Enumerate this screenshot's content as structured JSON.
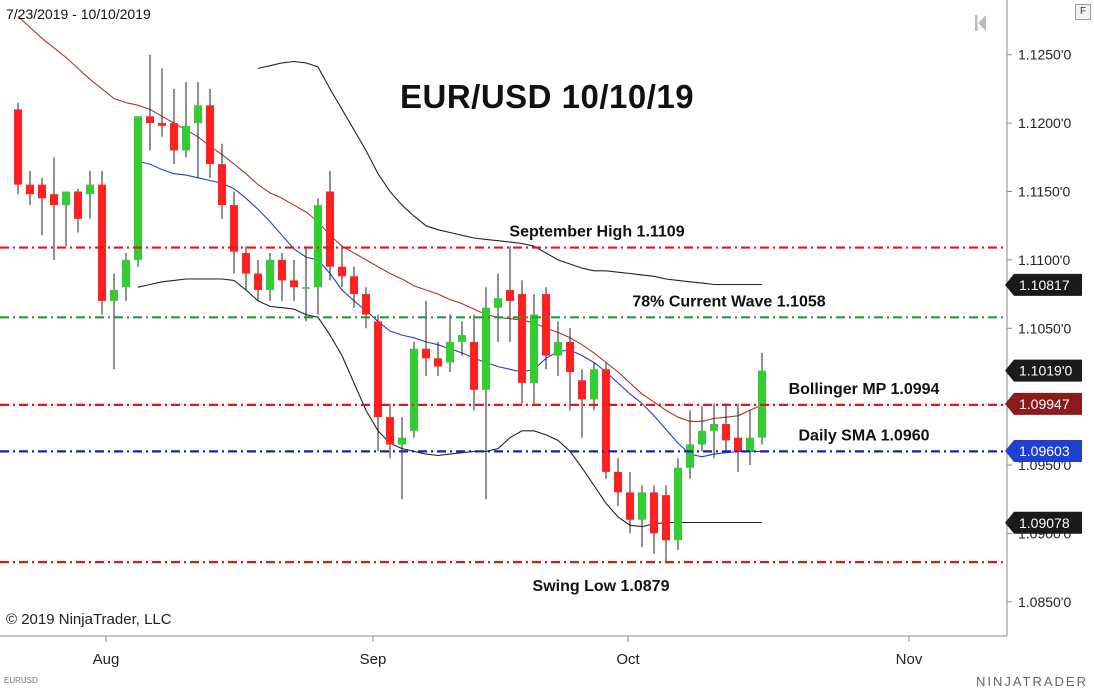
{
  "header": {
    "date_range": "7/23/2019 - 10/10/2019",
    "title": "EUR/USD 10/10/19"
  },
  "footer": {
    "copyright": "© 2019 NinjaTrader, LLC",
    "instrument": "EURUSD",
    "brand": "NINJATRADER"
  },
  "controls": {
    "f_button": "F"
  },
  "chart_data": {
    "type": "candlestick",
    "title": "EUR/USD 10/10/19",
    "colors": {
      "up": "#33cc33",
      "down": "#ff2020",
      "sma": "#1f3fd0",
      "bollinger_mid": "#b03030",
      "bollinger_band": "#222222"
    },
    "x_axis": {
      "labels": [
        "Aug",
        "Sep",
        "Oct",
        "Nov"
      ]
    },
    "y_axis": {
      "min": 1.0825,
      "max": 1.129,
      "tick_labels": [
        "1.1250'0",
        "1.1200'0",
        "1.1150'0",
        "1.1100'0",
        "1.1050'0",
        "1.0950'0",
        "1.0900'0",
        "1.0850'0"
      ]
    },
    "price_tags": [
      {
        "value": "1.10817",
        "price": 1.10817,
        "bg": "#1a1a1a"
      },
      {
        "value": "1.1019'0",
        "price": 1.1019,
        "bg": "#1a1a1a"
      },
      {
        "value": "1.09947",
        "price": 1.09947,
        "bg": "#8b1a1a"
      },
      {
        "value": "1.09603",
        "price": 1.09603,
        "bg": "#1f3fd0"
      },
      {
        "value": "1.09078",
        "price": 1.09078,
        "bg": "#1a1a1a"
      }
    ],
    "levels": [
      {
        "label": "September High 1.1109",
        "price": 1.1109,
        "color": "#e01818"
      },
      {
        "label": "78% Current Wave 1.1058",
        "price": 1.1058,
        "color": "#1e9c30"
      },
      {
        "label": "Bollinger MP 1.0994",
        "price": 1.0994,
        "color": "#e01818"
      },
      {
        "label": "Daily SMA 1.0960",
        "price": 1.096,
        "color": "#1520b0"
      },
      {
        "label": "Swing Low 1.0879",
        "price": 1.0879,
        "color": "#e01818"
      }
    ],
    "candles": [
      {
        "o": 1.121,
        "h": 1.1215,
        "l": 1.1148,
        "c": 1.1155
      },
      {
        "o": 1.1155,
        "h": 1.1165,
        "l": 1.114,
        "c": 1.1148
      },
      {
        "o": 1.1155,
        "h": 1.116,
        "l": 1.1118,
        "c": 1.1145
      },
      {
        "o": 1.1148,
        "h": 1.1175,
        "l": 1.11,
        "c": 1.114
      },
      {
        "o": 1.114,
        "h": 1.115,
        "l": 1.111,
        "c": 1.115
      },
      {
        "o": 1.115,
        "h": 1.1152,
        "l": 1.112,
        "c": 1.113
      },
      {
        "o": 1.1148,
        "h": 1.1165,
        "l": 1.113,
        "c": 1.1155
      },
      {
        "o": 1.1155,
        "h": 1.1165,
        "l": 1.106,
        "c": 1.107
      },
      {
        "o": 1.107,
        "h": 1.109,
        "l": 1.102,
        "c": 1.1078
      },
      {
        "o": 1.108,
        "h": 1.1105,
        "l": 1.107,
        "c": 1.11
      },
      {
        "o": 1.11,
        "h": 1.1205,
        "l": 1.1095,
        "c": 1.1205
      },
      {
        "o": 1.1205,
        "h": 1.125,
        "l": 1.118,
        "c": 1.12
      },
      {
        "o": 1.12,
        "h": 1.124,
        "l": 1.119,
        "c": 1.1198
      },
      {
        "o": 1.12,
        "h": 1.1225,
        "l": 1.117,
        "c": 1.118
      },
      {
        "o": 1.118,
        "h": 1.123,
        "l": 1.1175,
        "c": 1.1198
      },
      {
        "o": 1.12,
        "h": 1.123,
        "l": 1.116,
        "c": 1.1213
      },
      {
        "o": 1.1213,
        "h": 1.1225,
        "l": 1.116,
        "c": 1.117
      },
      {
        "o": 1.117,
        "h": 1.1185,
        "l": 1.113,
        "c": 1.114
      },
      {
        "o": 1.114,
        "h": 1.115,
        "l": 1.109,
        "c": 1.1106
      },
      {
        "o": 1.1105,
        "h": 1.111,
        "l": 1.1078,
        "c": 1.109
      },
      {
        "o": 1.109,
        "h": 1.11,
        "l": 1.107,
        "c": 1.1078
      },
      {
        "o": 1.1078,
        "h": 1.1105,
        "l": 1.107,
        "c": 1.11
      },
      {
        "o": 1.11,
        "h": 1.1105,
        "l": 1.107,
        "c": 1.1085
      },
      {
        "o": 1.1085,
        "h": 1.11,
        "l": 1.107,
        "c": 1.108
      },
      {
        "o": 1.108,
        "h": 1.111,
        "l": 1.1055,
        "c": 1.108
      },
      {
        "o": 1.108,
        "h": 1.1145,
        "l": 1.106,
        "c": 1.114
      },
      {
        "o": 1.115,
        "h": 1.1165,
        "l": 1.1085,
        "c": 1.1095
      },
      {
        "o": 1.1095,
        "h": 1.111,
        "l": 1.108,
        "c": 1.1088
      },
      {
        "o": 1.1088,
        "h": 1.1095,
        "l": 1.1065,
        "c": 1.1075
      },
      {
        "o": 1.1075,
        "h": 1.108,
        "l": 1.105,
        "c": 1.106
      },
      {
        "o": 1.1055,
        "h": 1.106,
        "l": 1.096,
        "c": 1.0985
      },
      {
        "o": 1.0985,
        "h": 1.0995,
        "l": 1.0955,
        "c": 1.0965
      },
      {
        "o": 1.0965,
        "h": 1.0985,
        "l": 1.0925,
        "c": 1.097
      },
      {
        "o": 1.0975,
        "h": 1.104,
        "l": 1.097,
        "c": 1.1035
      },
      {
        "o": 1.1035,
        "h": 1.107,
        "l": 1.1015,
        "c": 1.1028
      },
      {
        "o": 1.1028,
        "h": 1.104,
        "l": 1.1015,
        "c": 1.1022
      },
      {
        "o": 1.1025,
        "h": 1.106,
        "l": 1.1018,
        "c": 1.104
      },
      {
        "o": 1.104,
        "h": 1.1055,
        "l": 1.103,
        "c": 1.1045
      },
      {
        "o": 1.104,
        "h": 1.106,
        "l": 1.099,
        "c": 1.1005
      },
      {
        "o": 1.1005,
        "h": 1.108,
        "l": 1.0925,
        "c": 1.1065
      },
      {
        "o": 1.1065,
        "h": 1.109,
        "l": 1.104,
        "c": 1.1072
      },
      {
        "o": 1.1078,
        "h": 1.111,
        "l": 1.104,
        "c": 1.107
      },
      {
        "o": 1.1075,
        "h": 1.1085,
        "l": 1.0995,
        "c": 1.101
      },
      {
        "o": 1.101,
        "h": 1.1075,
        "l": 1.0995,
        "c": 1.106
      },
      {
        "o": 1.1075,
        "h": 1.108,
        "l": 1.102,
        "c": 1.103
      },
      {
        "o": 1.103,
        "h": 1.1055,
        "l": 1.1015,
        "c": 1.104
      },
      {
        "o": 1.104,
        "h": 1.105,
        "l": 1.099,
        "c": 1.1018
      },
      {
        "o": 1.1012,
        "h": 1.102,
        "l": 1.097,
        "c": 1.0998
      },
      {
        "o": 1.0998,
        "h": 1.1025,
        "l": 1.099,
        "c": 1.102
      },
      {
        "o": 1.102,
        "h": 1.1025,
        "l": 1.094,
        "c": 1.0945
      },
      {
        "o": 1.0945,
        "h": 1.0955,
        "l": 1.092,
        "c": 1.093
      },
      {
        "o": 1.093,
        "h": 1.0945,
        "l": 1.09,
        "c": 1.091
      },
      {
        "o": 1.091,
        "h": 1.0935,
        "l": 1.089,
        "c": 1.093
      },
      {
        "o": 1.093,
        "h": 1.0935,
        "l": 1.0885,
        "c": 1.09
      },
      {
        "o": 1.0928,
        "h": 1.0935,
        "l": 1.0879,
        "c": 1.0895
      },
      {
        "o": 1.0895,
        "h": 1.0955,
        "l": 1.0888,
        "c": 1.0948
      },
      {
        "o": 1.0948,
        "h": 1.099,
        "l": 1.094,
        "c": 1.0965
      },
      {
        "o": 1.0965,
        "h": 1.0993,
        "l": 1.096,
        "c": 1.0975
      },
      {
        "o": 1.0975,
        "h": 1.0995,
        "l": 1.0955,
        "c": 1.098
      },
      {
        "o": 1.098,
        "h": 1.0995,
        "l": 1.096,
        "c": 1.0968
      },
      {
        "o": 1.097,
        "h": 1.0995,
        "l": 1.0945,
        "c": 1.096
      },
      {
        "o": 1.096,
        "h": 1.099,
        "l": 1.095,
        "c": 1.097
      },
      {
        "o": 1.097,
        "h": 1.1032,
        "l": 1.0965,
        "c": 1.1019
      }
    ],
    "sma": [
      null,
      null,
      null,
      null,
      null,
      null,
      null,
      null,
      null,
      null,
      1.1172,
      1.117,
      1.1166,
      1.1163,
      1.1162,
      1.116,
      1.1158,
      1.1156,
      1.1152,
      1.1145,
      1.1137,
      1.1128,
      1.1118,
      1.1108,
      1.1102,
      1.11,
      1.109,
      1.1078,
      1.107,
      1.1063,
      1.1055,
      1.1048,
      1.1045,
      1.1043,
      1.104,
      1.1038,
      1.1035,
      1.1032,
      1.1028,
      1.1025,
      1.1022,
      1.102,
      1.1018,
      1.102,
      1.1028,
      1.1033,
      1.1034,
      1.103,
      1.1025,
      1.1018,
      1.101,
      1.1002,
      1.0995,
      1.0986,
      1.0976,
      1.0966,
      1.0958,
      1.0956,
      1.0958,
      1.0959,
      1.096,
      1.096,
      1.096
    ],
    "bollinger_mid": [
      1.1278,
      1.127,
      1.1262,
      1.1255,
      1.1248,
      1.124,
      1.1232,
      1.1225,
      1.1218,
      1.1215,
      1.1213,
      1.121,
      1.1205,
      1.12,
      1.1195,
      1.119,
      1.1183,
      1.1177,
      1.117,
      1.1163,
      1.1155,
      1.1149,
      1.1145,
      1.114,
      1.1135,
      1.1128,
      1.1118,
      1.111,
      1.1105,
      1.11,
      1.1095,
      1.109,
      1.1086,
      1.1081,
      1.1078,
      1.1075,
      1.1071,
      1.1068,
      1.1064,
      1.106,
      1.1058,
      1.1057,
      1.1056,
      1.1054,
      1.105,
      1.1047,
      1.1043,
      1.1038,
      1.1032,
      1.1025,
      1.1018,
      1.101,
      1.1002,
      1.0996,
      1.099,
      1.0985,
      1.0982,
      1.0982,
      1.0984,
      1.0985,
      1.0986,
      1.099,
      1.0994
    ],
    "bollinger_upper": [
      null,
      null,
      null,
      null,
      null,
      null,
      null,
      null,
      null,
      null,
      null,
      null,
      null,
      null,
      null,
      null,
      null,
      null,
      null,
      null,
      1.124,
      1.1242,
      1.1244,
      1.1245,
      1.1244,
      1.1241,
      1.1225,
      1.121,
      1.1195,
      1.118,
      1.1163,
      1.115,
      1.114,
      1.1132,
      1.1125,
      1.1122,
      1.112,
      1.1118,
      1.1116,
      1.1115,
      1.1114,
      1.1113,
      1.1112,
      1.111,
      1.1105,
      1.11,
      1.1097,
      1.1094,
      1.1092,
      1.1092,
      1.1091,
      1.109,
      1.1089,
      1.1088,
      1.1086,
      1.1085,
      1.1084,
      1.1083,
      1.1082,
      1.1082,
      1.1082,
      1.1082,
      1.1082
    ],
    "bollinger_lower": [
      null,
      null,
      null,
      null,
      null,
      null,
      null,
      null,
      null,
      null,
      1.108,
      1.1082,
      1.1084,
      1.1085,
      1.1086,
      1.1086,
      1.1086,
      1.1086,
      1.1085,
      1.1078,
      1.107,
      1.1066,
      1.1065,
      1.1064,
      1.106,
      1.1058,
      1.1045,
      1.103,
      1.101,
      1.099,
      1.0975,
      1.0966,
      1.0962,
      1.096,
      1.0958,
      1.0957,
      1.0958,
      1.0959,
      1.096,
      1.096,
      1.0962,
      1.097,
      1.0975,
      1.0975,
      1.0972,
      1.0968,
      1.096,
      1.0948,
      1.0935,
      1.0922,
      1.0912,
      1.0906,
      1.0905,
      1.0907,
      1.0908,
      1.0908,
      1.0908,
      1.0908,
      1.0908,
      1.0908,
      1.0908,
      1.0908,
      1.0908
    ]
  }
}
